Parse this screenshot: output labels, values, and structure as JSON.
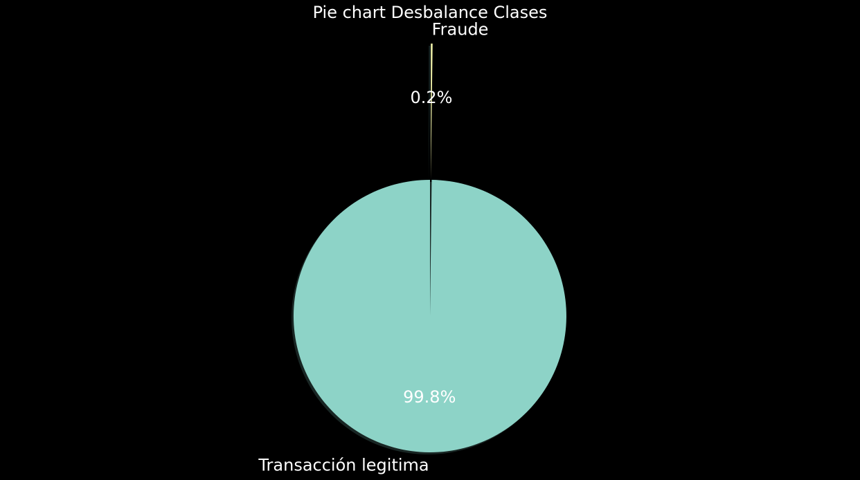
{
  "chart_data": {
    "type": "pie",
    "title": "Pie chart Desbalance Clases",
    "labels": [
      "Transacción legitima",
      "Fraude"
    ],
    "values": [
      99.8,
      0.2
    ],
    "percent_labels": [
      "99.8%",
      "0.2%"
    ],
    "colors": [
      "#8dd3c7",
      "#feffb3"
    ],
    "explode": [
      0,
      1
    ],
    "shadow": true,
    "start_angle_deg": 90,
    "background": "#000000"
  }
}
